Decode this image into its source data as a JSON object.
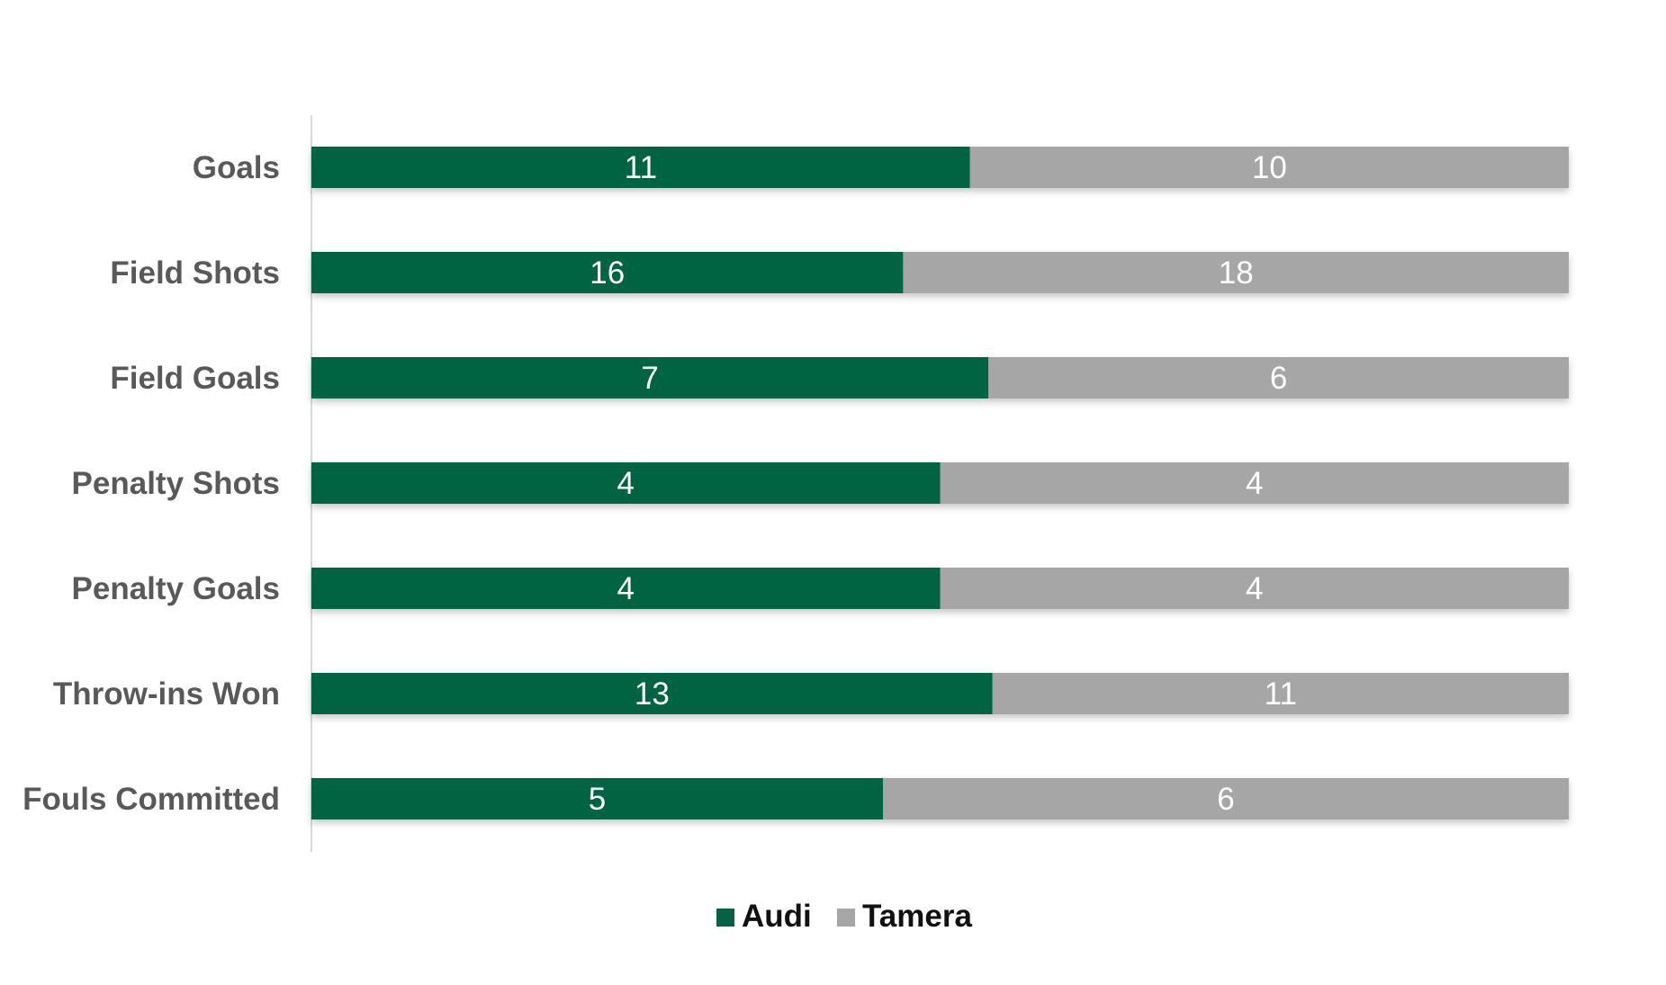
{
  "chart_data": {
    "type": "bar",
    "orientation": "horizontal",
    "stacking": "percent",
    "categories": [
      "Goals",
      "Field Shots",
      "Field Goals",
      "Penalty Shots",
      "Penalty Goals",
      "Throw-ins Won",
      "Fouls Committed"
    ],
    "series": [
      {
        "name": "Audi",
        "color": "#056343",
        "values": [
          11,
          16,
          7,
          4,
          4,
          13,
          5
        ]
      },
      {
        "name": "Tamera",
        "color": "#a6a6a6",
        "values": [
          10,
          18,
          6,
          4,
          4,
          11,
          6
        ]
      }
    ],
    "title": "",
    "xlabel": "",
    "ylabel": "",
    "grid": false,
    "legend": "bottom-center"
  }
}
